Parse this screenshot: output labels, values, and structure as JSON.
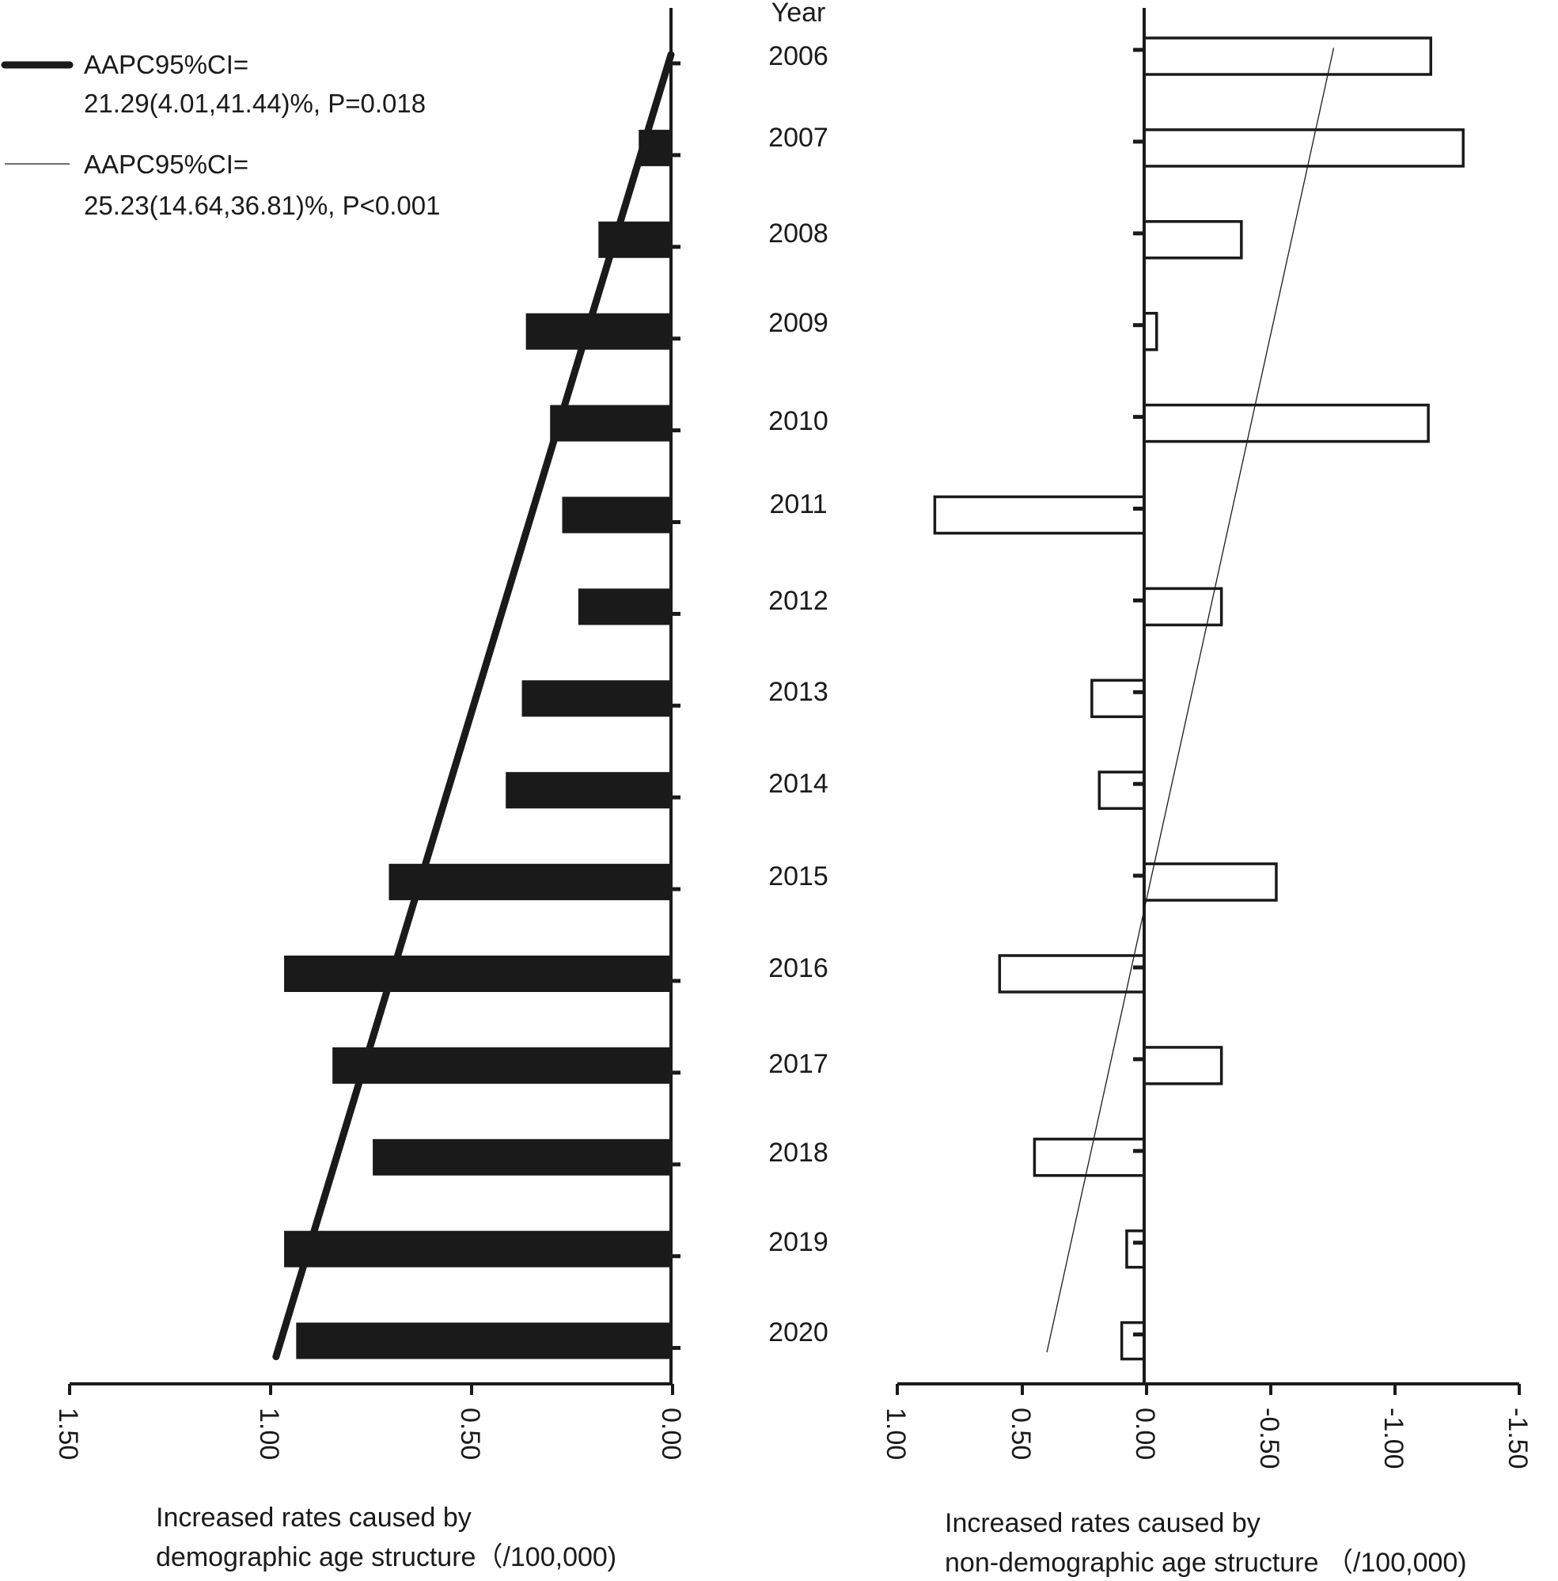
{
  "years_header": "Year",
  "legend": [
    {
      "line1": "AAPC95%CI=",
      "line2": "21.29(4.01,41.44)%, P=0.018",
      "style": "thick"
    },
    {
      "line1": "AAPC95%CI=",
      "line2": "25.23(14.64,36.81)%, P<0.001",
      "style": "thin"
    }
  ],
  "colors": {
    "ink": "#1a1a1a",
    "background": "#ffffff"
  },
  "chart_data": [
    {
      "type": "bar",
      "orientation": "horizontal",
      "direction": "reversed",
      "fill": "solid-black",
      "categories": [
        "2006",
        "2007",
        "2008",
        "2009",
        "2010",
        "2011",
        "2012",
        "2013",
        "2014",
        "2015",
        "2016",
        "2017",
        "2018",
        "2019",
        "2020"
      ],
      "values": [
        0.0,
        0.08,
        0.18,
        0.36,
        0.3,
        0.27,
        0.23,
        0.37,
        0.41,
        0.7,
        0.96,
        0.84,
        0.74,
        0.96,
        0.93
      ],
      "trend_line": {
        "start": [
          0.0,
          "2006"
        ],
        "end": [
          0.98,
          "2020"
        ],
        "width": "thick"
      },
      "xlim": [
        1.5,
        0.0
      ],
      "xticks": [
        "1.50",
        "1.00",
        "0.50",
        "0.00"
      ],
      "xlabel_line1": "Increased rates caused by",
      "xlabel_line2": "demographic age structure（/100,000)"
    },
    {
      "type": "bar",
      "orientation": "horizontal",
      "direction": "reversed",
      "fill": "outline",
      "categories": [
        "2006",
        "2007",
        "2008",
        "2009",
        "2010",
        "2011",
        "2012",
        "2013",
        "2014",
        "2015",
        "2016",
        "2017",
        "2018",
        "2019",
        "2020"
      ],
      "values": [
        -1.15,
        -1.28,
        -0.39,
        -0.05,
        -1.14,
        0.84,
        -0.31,
        0.21,
        0.18,
        -0.53,
        0.58,
        -0.31,
        0.44,
        0.07,
        0.09
      ],
      "trend_line": {
        "start": [
          -0.76,
          "2006"
        ],
        "end": [
          0.39,
          "2020"
        ],
        "width": "thin"
      },
      "xlim": [
        1.0,
        -1.5
      ],
      "xticks": [
        "1.00",
        "0.50",
        "0.00",
        "-0.50",
        "-1.00",
        "-1.50"
      ],
      "xlabel_line1": "Increased rates caused by",
      "xlabel_line2": "non-demographic age structure （/100,000)"
    }
  ]
}
